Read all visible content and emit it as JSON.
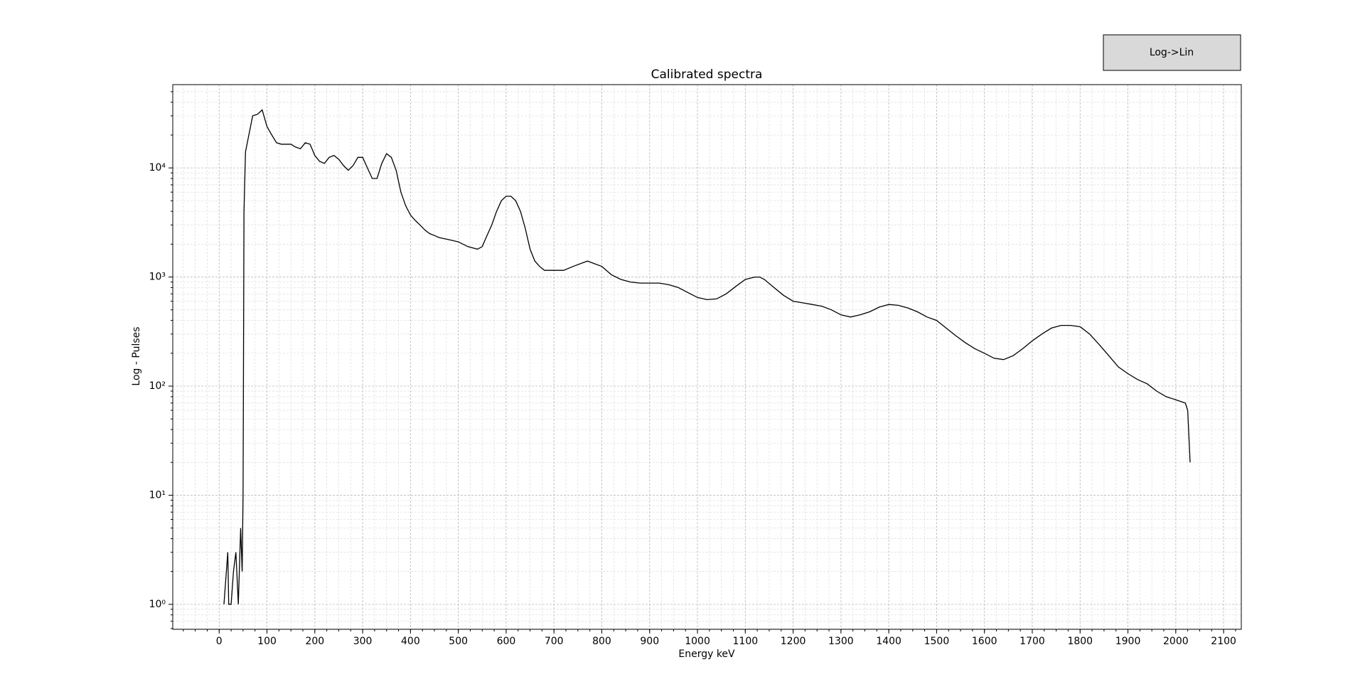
{
  "chart_data": {
    "type": "line",
    "title": "Calibrated spectra",
    "x_label": "Energy keV",
    "y_label": "Log - Pulses",
    "button": "Log->Lin",
    "color": "#000000",
    "log_y": true,
    "grid": true,
    "x": [
      10,
      15,
      18,
      20,
      25,
      30,
      35,
      40,
      45,
      48,
      50,
      52,
      55,
      60,
      70,
      80,
      90,
      100,
      110,
      120,
      130,
      150,
      160,
      170,
      180,
      190,
      200,
      210,
      220,
      230,
      240,
      250,
      260,
      270,
      280,
      290,
      300,
      310,
      320,
      330,
      340,
      350,
      360,
      370,
      380,
      390,
      400,
      410,
      420,
      430,
      440,
      450,
      460,
      480,
      500,
      520,
      540,
      550,
      560,
      570,
      580,
      590,
      600,
      610,
      620,
      630,
      640,
      650,
      660,
      670,
      680,
      700,
      720,
      740,
      760,
      770,
      780,
      800,
      820,
      840,
      860,
      880,
      900,
      920,
      940,
      960,
      980,
      1000,
      1020,
      1040,
      1060,
      1080,
      1100,
      1120,
      1130,
      1140,
      1160,
      1180,
      1200,
      1220,
      1240,
      1260,
      1280,
      1300,
      1320,
      1340,
      1360,
      1380,
      1400,
      1420,
      1440,
      1460,
      1480,
      1500,
      1520,
      1540,
      1560,
      1580,
      1600,
      1620,
      1640,
      1660,
      1680,
      1700,
      1720,
      1740,
      1760,
      1780,
      1800,
      1820,
      1840,
      1860,
      1880,
      1900,
      1920,
      1940,
      1960,
      1980,
      2000,
      2020,
      2025,
      2030
    ],
    "values": [
      1,
      2,
      3,
      1,
      1,
      2,
      3,
      1,
      5,
      2,
      10,
      4000,
      14000,
      18000,
      30000,
      31000,
      34000,
      24000,
      20000,
      17000,
      16500,
      16500,
      15500,
      15000,
      17000,
      16500,
      13000,
      11500,
      11000,
      12500,
      13000,
      12000,
      10500,
      9500,
      10500,
      12500,
      12500,
      10000,
      8000,
      8000,
      11000,
      13500,
      12500,
      9500,
      6000,
      4500,
      3700,
      3300,
      3000,
      2700,
      2500,
      2400,
      2300,
      2200,
      2100,
      1900,
      1800,
      1900,
      2400,
      3000,
      4000,
      5000,
      5500,
      5500,
      5000,
      4000,
      2800,
      1800,
      1400,
      1250,
      1150,
      1150,
      1150,
      1250,
      1350,
      1400,
      1350,
      1250,
      1050,
      950,
      900,
      880,
      880,
      880,
      850,
      800,
      720,
      650,
      620,
      630,
      700,
      820,
      950,
      1000,
      1000,
      950,
      800,
      680,
      600,
      580,
      560,
      540,
      500,
      450,
      430,
      450,
      480,
      530,
      560,
      550,
      520,
      480,
      430,
      400,
      340,
      290,
      250,
      220,
      200,
      180,
      175,
      190,
      220,
      260,
      300,
      340,
      360,
      360,
      350,
      300,
      240,
      190,
      150,
      130,
      115,
      105,
      90,
      80,
      75,
      70,
      60,
      20
    ],
    "xlim": [
      -97,
      2137
    ],
    "ylim": [
      0.59,
      58000
    ],
    "xticks": [
      0,
      100,
      200,
      300,
      400,
      500,
      600,
      700,
      800,
      900,
      1000,
      1100,
      1200,
      1300,
      1400,
      1500,
      1600,
      1700,
      1800,
      1900,
      2000,
      2100
    ],
    "yticks": [
      {
        "value": 1,
        "label": "10⁰"
      },
      {
        "value": 10,
        "label": "10¹"
      },
      {
        "value": 100,
        "label": "10²"
      },
      {
        "value": 1000,
        "label": "10³"
      },
      {
        "value": 10000,
        "label": "10⁴"
      }
    ]
  }
}
